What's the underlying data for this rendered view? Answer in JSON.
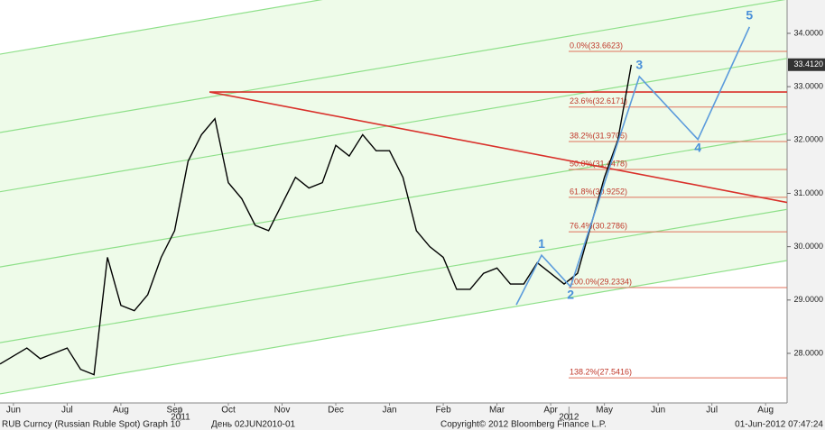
{
  "chart_data": {
    "type": "line",
    "xlim": [
      0.25,
      14.9
    ],
    "ylim": [
      27.07,
      34.625
    ],
    "xticks": [
      {
        "value": 0.5,
        "label": "Jun"
      },
      {
        "value": 1.5,
        "label": "Jul"
      },
      {
        "value": 2.5,
        "label": "Aug"
      },
      {
        "value": 3.5,
        "label": "Sep"
      },
      {
        "value": 4.5,
        "label": "Oct"
      },
      {
        "value": 5.5,
        "label": "Nov"
      },
      {
        "value": 6.5,
        "label": "Dec"
      },
      {
        "value": 7.5,
        "label": "Jan"
      },
      {
        "value": 8.5,
        "label": "Feb"
      },
      {
        "value": 9.5,
        "label": "Mar"
      },
      {
        "value": 10.5,
        "label": "Apr"
      },
      {
        "value": 11.5,
        "label": "May"
      },
      {
        "value": 12.5,
        "label": "Jun"
      },
      {
        "value": 13.5,
        "label": "Jul"
      },
      {
        "value": 14.5,
        "label": "Aug"
      }
    ],
    "year_ticks": [
      {
        "value": 3.61,
        "label": "2011"
      },
      {
        "value": 10.84,
        "label": "2012"
      }
    ],
    "yticks": [
      {
        "value": 28,
        "label": "28.0000"
      },
      {
        "value": 29,
        "label": "29.0000"
      },
      {
        "value": 30,
        "label": "30.0000"
      },
      {
        "value": 31,
        "label": "31.0000"
      },
      {
        "value": 32,
        "label": "32.0000"
      },
      {
        "value": 33,
        "label": "33.0000"
      },
      {
        "value": 34,
        "label": "34.0000"
      }
    ],
    "series": [
      {
        "color": "#000000",
        "x": [
          0.25,
          0.5,
          0.75,
          1.0,
          1.25,
          1.5,
          1.75,
          2.0,
          2.25,
          2.5,
          2.75,
          3.0,
          3.25,
          3.5,
          3.75,
          4.0,
          4.25,
          4.5,
          4.75,
          5.0,
          5.25,
          5.5,
          5.75,
          6.0,
          6.25,
          6.5,
          6.75,
          7.0,
          7.25,
          7.5,
          7.75,
          8.0,
          8.25,
          8.5,
          8.75,
          9.0,
          9.25,
          9.5,
          9.75,
          10.0,
          10.25,
          10.5,
          10.75,
          11.0,
          11.25,
          11.5,
          11.75,
          12.0
        ],
        "values": [
          27.8,
          27.95,
          28.1,
          27.9,
          28.0,
          28.1,
          27.7,
          27.6,
          29.8,
          28.9,
          28.8,
          29.1,
          29.8,
          30.3,
          31.6,
          32.1,
          32.4,
          31.2,
          30.9,
          30.4,
          30.3,
          30.8,
          31.3,
          31.1,
          31.2,
          31.9,
          31.7,
          32.1,
          31.8,
          31.8,
          31.3,
          30.3,
          30.0,
          29.8,
          29.2,
          29.2,
          29.5,
          29.6,
          29.3,
          29.3,
          29.7,
          29.5,
          29.3,
          29.5,
          30.4,
          31.3,
          32.0,
          33.41
        ]
      }
    ],
    "last_price": {
      "value": 33.412,
      "label": "33.4120"
    },
    "channel_lines": [
      {
        "x": [
          0.25,
          14.9
        ],
        "y": [
          33.61,
          36.11
        ]
      },
      {
        "x": [
          0.25,
          14.9
        ],
        "y": [
          32.14,
          34.64
        ]
      },
      {
        "x": [
          0.25,
          14.9
        ],
        "y": [
          31.03,
          33.53
        ]
      },
      {
        "x": [
          0.25,
          14.9
        ],
        "y": [
          29.62,
          32.12
        ]
      },
      {
        "x": [
          0.25,
          14.9
        ],
        "y": [
          28.2,
          30.7
        ]
      },
      {
        "x": [
          0.25,
          14.9
        ],
        "y": [
          27.24,
          29.74
        ]
      }
    ],
    "channel_color": "#8fe08a",
    "red_lines": [
      {
        "x": [
          4.15,
          14.9
        ],
        "y": [
          32.9,
          32.9
        ]
      },
      {
        "x": [
          4.15,
          14.9
        ],
        "y": [
          32.9,
          30.83
        ]
      }
    ],
    "red_color": "#d9302a",
    "fib_levels": [
      {
        "value": 33.6623,
        "label": "0.0%(33.6623)"
      },
      {
        "value": 32.6171,
        "label": "23.6%(32.6171)"
      },
      {
        "value": 31.9705,
        "label": "38.2%(31.9705)"
      },
      {
        "value": 31.4478,
        "label": "50.0%(31.4478)"
      },
      {
        "value": 30.9252,
        "label": "61.8%(30.9252)"
      },
      {
        "value": 30.2786,
        "label": "76.4%(30.2786)"
      },
      {
        "value": 29.2334,
        "label": "100.0%(29.2334)"
      },
      {
        "value": 27.5416,
        "label": "138.2%(27.5416)"
      }
    ],
    "fib_color": "#e0705c",
    "wave": {
      "color": "#5b9bdc",
      "x": [
        9.86,
        10.33,
        10.87,
        12.15,
        13.24,
        14.2
      ],
      "y": [
        28.91,
        29.84,
        29.25,
        33.19,
        32.01,
        34.12
      ],
      "labels": [
        null,
        "1",
        "2",
        "3",
        "4",
        "5"
      ]
    },
    "footer": [
      "RUB Curncy (Russian Ruble Spot) Graph 10",
      "День 02JUN2010-01",
      "Copyright© 2012 Bloomberg Finance L.P.",
      "01-Jun-2012 07:47:24"
    ]
  }
}
